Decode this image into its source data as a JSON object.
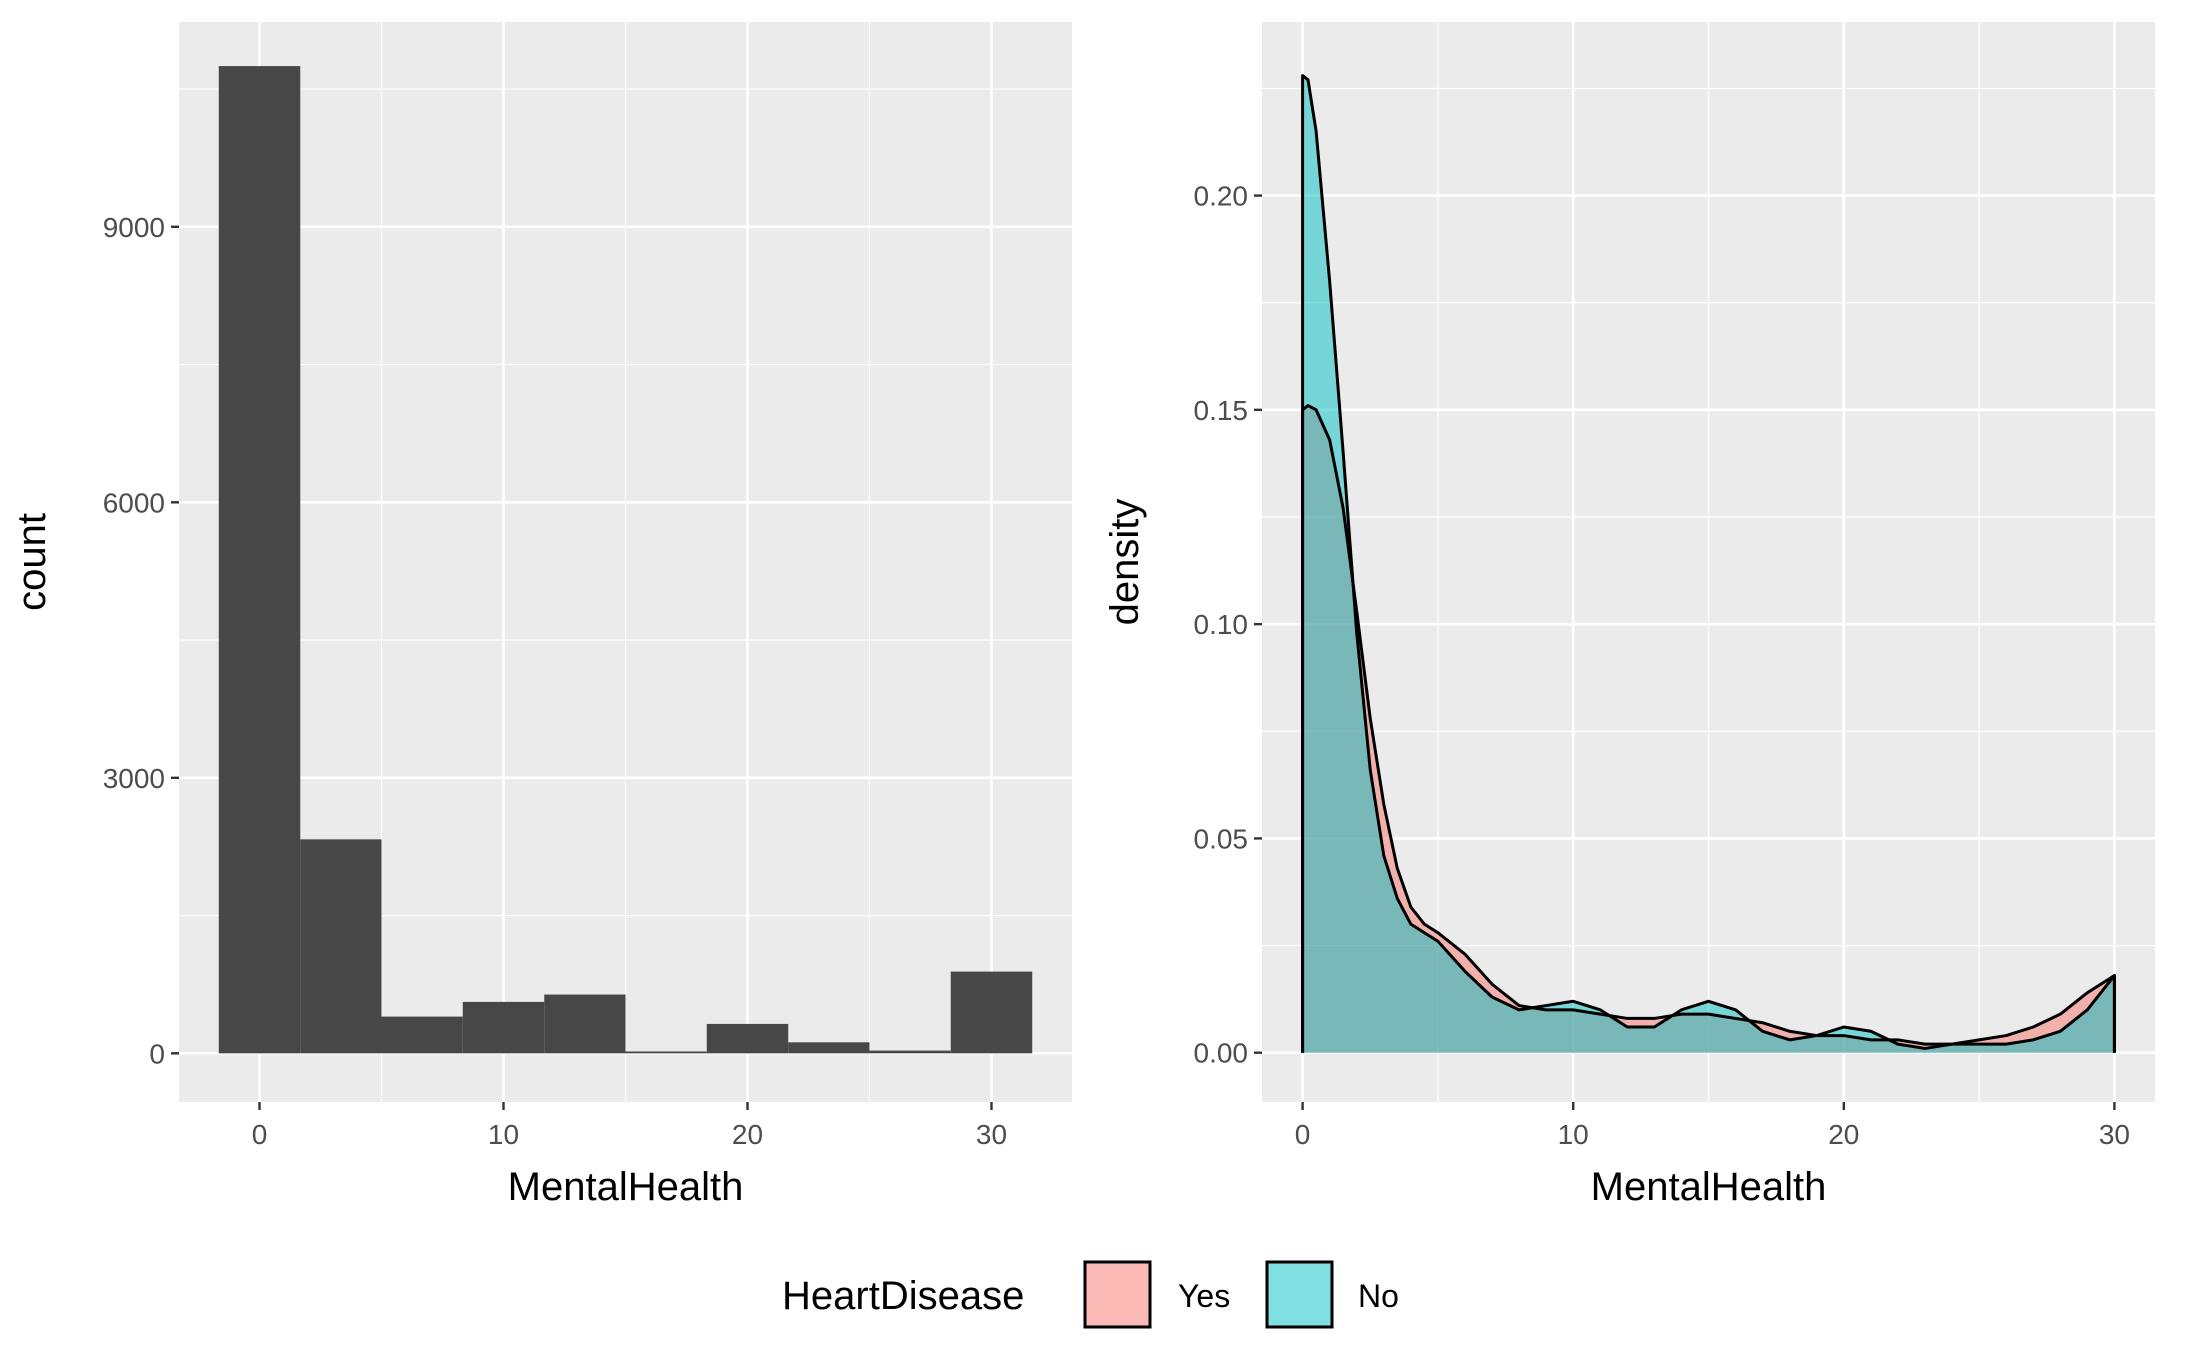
{
  "chart_data": [
    {
      "type": "bar",
      "subtype": "histogram",
      "xlabel": "MentalHealth",
      "ylabel": "count",
      "xlim": [
        -3.3,
        33.3
      ],
      "ylim": [
        -530,
        11230
      ],
      "x_ticks": [
        0,
        10,
        20,
        30
      ],
      "y_ticks": [
        0,
        3000,
        6000,
        9000
      ],
      "x_tick_labels": [
        "0",
        "10",
        "20",
        "30"
      ],
      "y_tick_labels": [
        "0",
        "3000",
        "6000",
        "9000"
      ],
      "grid": true,
      "bin_width": 3.33,
      "bins": [
        {
          "x0": -1.67,
          "x1": 1.67,
          "count": 10750
        },
        {
          "x0": 1.67,
          "x1": 5.0,
          "count": 2330
        },
        {
          "x0": 5.0,
          "x1": 8.33,
          "count": 400
        },
        {
          "x0": 8.33,
          "x1": 11.67,
          "count": 560
        },
        {
          "x0": 11.67,
          "x1": 15.0,
          "count": 640
        },
        {
          "x0": 15.0,
          "x1": 18.33,
          "count": 20
        },
        {
          "x0": 18.33,
          "x1": 21.67,
          "count": 320
        },
        {
          "x0": 21.67,
          "x1": 25.0,
          "count": 120
        },
        {
          "x0": 25.0,
          "x1": 28.33,
          "count": 30
        },
        {
          "x0": 28.33,
          "x1": 31.67,
          "count": 890
        }
      ],
      "fill_color": "#474747"
    },
    {
      "type": "area",
      "subtype": "density",
      "xlabel": "MentalHealth",
      "ylabel": "density",
      "xlim": [
        -1.5,
        31.5
      ],
      "ylim": [
        -0.0115,
        0.2405
      ],
      "x_ticks": [
        0,
        10,
        20,
        30
      ],
      "y_ticks": [
        0,
        0.05,
        0.1,
        0.15,
        0.2
      ],
      "x_tick_labels": [
        "0",
        "10",
        "20",
        "30"
      ],
      "y_tick_labels": [
        "0.00",
        "0.05",
        "0.10",
        "0.15",
        "0.20"
      ],
      "grid": true,
      "series": [
        {
          "name": "Yes",
          "color": "#F8766D",
          "points": [
            [
              0,
              0.15
            ],
            [
              0.2,
              0.151
            ],
            [
              0.5,
              0.15
            ],
            [
              1,
              0.143
            ],
            [
              1.5,
              0.127
            ],
            [
              2,
              0.103
            ],
            [
              2.5,
              0.078
            ],
            [
              3,
              0.058
            ],
            [
              3.5,
              0.043
            ],
            [
              4,
              0.034
            ],
            [
              4.5,
              0.03
            ],
            [
              5,
              0.028
            ],
            [
              6,
              0.023
            ],
            [
              7,
              0.016
            ],
            [
              8,
              0.011
            ],
            [
              9,
              0.01
            ],
            [
              10,
              0.01
            ],
            [
              11,
              0.009
            ],
            [
              12,
              0.008
            ],
            [
              13,
              0.008
            ],
            [
              14,
              0.009
            ],
            [
              15,
              0.009
            ],
            [
              16,
              0.008
            ],
            [
              17,
              0.007
            ],
            [
              18,
              0.005
            ],
            [
              19,
              0.004
            ],
            [
              20,
              0.004
            ],
            [
              21,
              0.003
            ],
            [
              22,
              0.003
            ],
            [
              23,
              0.002
            ],
            [
              24,
              0.002
            ],
            [
              25,
              0.003
            ],
            [
              26,
              0.004
            ],
            [
              27,
              0.006
            ],
            [
              28,
              0.009
            ],
            [
              29,
              0.014
            ],
            [
              30,
              0.018
            ]
          ]
        },
        {
          "name": "No",
          "color": "#00BFC4",
          "points": [
            [
              0,
              0.228
            ],
            [
              0.2,
              0.227
            ],
            [
              0.5,
              0.215
            ],
            [
              1,
              0.18
            ],
            [
              1.5,
              0.14
            ],
            [
              2,
              0.098
            ],
            [
              2.5,
              0.066
            ],
            [
              3,
              0.046
            ],
            [
              3.5,
              0.036
            ],
            [
              4,
              0.03
            ],
            [
              4.5,
              0.028
            ],
            [
              5,
              0.026
            ],
            [
              6,
              0.019
            ],
            [
              7,
              0.013
            ],
            [
              8,
              0.01
            ],
            [
              9,
              0.011
            ],
            [
              10,
              0.012
            ],
            [
              11,
              0.01
            ],
            [
              12,
              0.006
            ],
            [
              13,
              0.006
            ],
            [
              14,
              0.01
            ],
            [
              15,
              0.012
            ],
            [
              16,
              0.01
            ],
            [
              17,
              0.005
            ],
            [
              18,
              0.003
            ],
            [
              19,
              0.004
            ],
            [
              20,
              0.006
            ],
            [
              21,
              0.005
            ],
            [
              22,
              0.002
            ],
            [
              23,
              0.001
            ],
            [
              24,
              0.002
            ],
            [
              25,
              0.002
            ],
            [
              26,
              0.002
            ],
            [
              27,
              0.003
            ],
            [
              28,
              0.005
            ],
            [
              29,
              0.01
            ],
            [
              30,
              0.018
            ]
          ]
        }
      ]
    }
  ],
  "legend": {
    "title": "HeartDisease",
    "items": [
      {
        "label": "Yes",
        "color": "#F8766D"
      },
      {
        "label": "No",
        "color": "#00BFC4"
      }
    ],
    "position": "bottom"
  }
}
